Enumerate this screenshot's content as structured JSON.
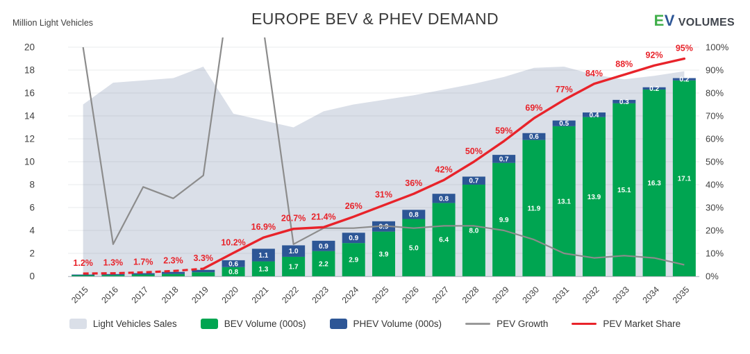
{
  "header": {
    "y_axis_title": "Million Light Vehicles",
    "title": "EUROPE BEV & PHEV DEMAND",
    "logo": {
      "e": "E",
      "v": "V",
      "volumes": "VOLUMES"
    }
  },
  "colors": {
    "bev_green": "#00A551",
    "phev_blue": "#2D5696",
    "lv_area": "#DADFE8",
    "growth_gray": "#8C8C8C",
    "share_red": "#E8232A",
    "text_dark": "#3F3F3F"
  },
  "chart_data": {
    "type": "combo",
    "title": "EUROPE BEV & PHEV DEMAND",
    "categories": [
      2015,
      2016,
      2017,
      2018,
      2019,
      2020,
      2021,
      2022,
      2023,
      2024,
      2025,
      2026,
      2027,
      2028,
      2029,
      2030,
      2031,
      2032,
      2033,
      2034,
      2035
    ],
    "left_axis": {
      "title": "Million Light Vehicles",
      "min": 0,
      "max": 20,
      "step": 2
    },
    "right_axis": {
      "min": 0,
      "max": 100,
      "step": 10,
      "suffix": "%"
    },
    "grid": true,
    "legend_position": "bottom",
    "series": [
      {
        "key": "lv",
        "name": "Light Vehicles Sales",
        "type": "area",
        "axis": "left",
        "color": "#DADFE8",
        "values": [
          15.0,
          16.9,
          17.1,
          17.3,
          18.3,
          14.2,
          13.6,
          13.0,
          14.4,
          15.0,
          15.4,
          15.8,
          16.3,
          16.8,
          17.4,
          18.2,
          18.3,
          17.6,
          17.2,
          17.5,
          17.9
        ]
      },
      {
        "key": "bev",
        "name": "BEV Volume (000s)",
        "type": "bar",
        "axis": "left",
        "color": "#00A551",
        "values": [
          0.09,
          0.11,
          0.15,
          0.2,
          0.35,
          0.8,
          1.3,
          1.7,
          2.2,
          2.9,
          3.9,
          5.0,
          6.4,
          8.0,
          9.9,
          11.9,
          13.1,
          13.9,
          15.1,
          16.3,
          17.1
        ],
        "labels": [
          "",
          "",
          "",
          "",
          "",
          "0.8",
          "1.3",
          "1.7",
          "2.2",
          "2.9",
          "3.9",
          "5.0",
          "6.4",
          "8.0",
          "9.9",
          "11.9",
          "13.1",
          "13.9",
          "15.1",
          "16.3",
          "17.1"
        ]
      },
      {
        "key": "phev",
        "name": "PHEV Volume (000s)",
        "type": "bar-stacked",
        "axis": "left",
        "color": "#2D5696",
        "values": [
          0.06,
          0.08,
          0.12,
          0.18,
          0.21,
          0.6,
          1.1,
          1.0,
          0.9,
          0.9,
          0.9,
          0.8,
          0.8,
          0.7,
          0.7,
          0.6,
          0.5,
          0.4,
          0.3,
          0.2,
          0.2
        ],
        "labels": [
          "",
          "",
          "",
          "",
          "",
          "0.6",
          "1.1",
          "1.0",
          "0.9",
          "0.9",
          "0.9",
          "0.8",
          "0.8",
          "0.7",
          "0.7",
          "0.6",
          "0.5",
          "0.4",
          "0.3",
          "0.2",
          "0.2"
        ]
      },
      {
        "key": "growth",
        "name": "PEV Growth",
        "type": "line",
        "axis": "right",
        "color": "#8C8C8C",
        "values": [
          100,
          14,
          39,
          34,
          44,
          137,
          108,
          14,
          21,
          21,
          22,
          21,
          22,
          22,
          20,
          16,
          10,
          8,
          9,
          8,
          5
        ]
      },
      {
        "key": "share",
        "name": "PEV Market Share",
        "type": "line",
        "axis": "right",
        "color": "#E8232A",
        "dash_until_index": 4,
        "values": [
          1.2,
          1.3,
          1.7,
          2.3,
          3.3,
          10.2,
          16.9,
          20.7,
          21.4,
          26,
          31,
          36,
          42,
          50,
          59,
          69,
          77,
          84,
          88,
          92,
          95
        ],
        "labels": [
          "1.2%",
          "1.3%",
          "1.7%",
          "2.3%",
          "3.3%",
          "10.2%",
          "16.9%",
          "20.7%",
          "21.4%",
          "26%",
          "31%",
          "36%",
          "42%",
          "50%",
          "59%",
          "69%",
          "77%",
          "84%",
          "88%",
          "92%",
          "95%"
        ]
      }
    ]
  },
  "legend": {
    "items": [
      {
        "label": "Light Vehicles Sales",
        "swatch": "area",
        "color": "#DADFE8"
      },
      {
        "label": "BEV Volume (000s)",
        "swatch": "bar",
        "color": "#00A551"
      },
      {
        "label": "PHEV Volume (000s)",
        "swatch": "bar",
        "color": "#2D5696"
      },
      {
        "label": "PEV Growth",
        "swatch": "line",
        "color": "#999999"
      },
      {
        "label": "PEV Market Share",
        "swatch": "line",
        "color": "#E8232A"
      }
    ]
  }
}
